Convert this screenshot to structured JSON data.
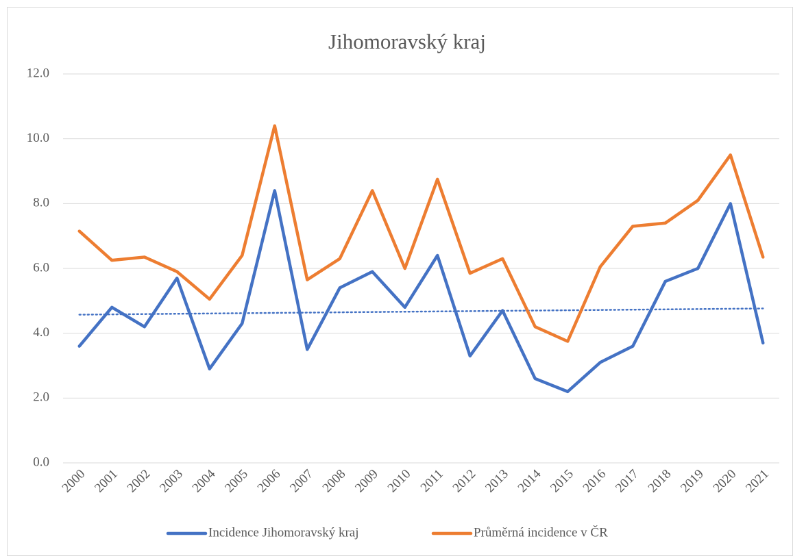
{
  "chart_data": {
    "type": "line",
    "title": "Jihomoravský kraj",
    "categories": [
      "2000",
      "2001",
      "2002",
      "2003",
      "2004",
      "2005",
      "2006",
      "2007",
      "2008",
      "2009",
      "2010",
      "2011",
      "2012",
      "2013",
      "2014",
      "2015",
      "2016",
      "2017",
      "2018",
      "2019",
      "2020",
      "2021"
    ],
    "series": [
      {
        "name": "Incidence Jihomoravský kraj",
        "color": "#4472c4",
        "trendline": "linear",
        "values": [
          3.6,
          4.8,
          4.2,
          5.7,
          2.9,
          4.3,
          8.4,
          3.5,
          5.4,
          5.9,
          4.8,
          6.4,
          3.3,
          4.7,
          2.6,
          2.2,
          3.1,
          3.6,
          5.6,
          6.0,
          8.0,
          3.7
        ]
      },
      {
        "name": "Průměrná incidence v ČR",
        "color": "#ed7d31",
        "values": [
          7.15,
          6.25,
          6.35,
          5.9,
          5.05,
          6.4,
          10.4,
          5.65,
          6.3,
          8.4,
          6.0,
          8.75,
          5.85,
          6.3,
          4.2,
          3.75,
          6.05,
          7.3,
          7.4,
          8.1,
          9.5,
          6.35
        ]
      }
    ],
    "ylim": [
      0,
      12
    ],
    "yticks": [
      {
        "value": 0,
        "label": "0.0"
      },
      {
        "value": 2,
        "label": "2.0"
      },
      {
        "value": 4,
        "label": "4.0"
      },
      {
        "value": 6,
        "label": "6.0"
      },
      {
        "value": 8,
        "label": "8.0"
      },
      {
        "value": 10,
        "label": "10.0"
      },
      {
        "value": 12,
        "label": "12.0"
      }
    ],
    "grid": true,
    "legend": "bottom"
  }
}
